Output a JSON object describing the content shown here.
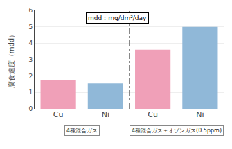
{
  "chart_data": {
    "type": "bar",
    "categories": [
      "Cu",
      "Ni",
      "Cu",
      "Ni"
    ],
    "values": [
      1.75,
      1.55,
      3.6,
      5.0
    ],
    "colors": [
      "#f0a0b8",
      "#90b8d8",
      "#f0a0b8",
      "#90b8d8"
    ],
    "ylabel": "腐食速度（mdd）",
    "ylim": [
      0,
      6
    ],
    "yticks": [
      0,
      1,
      2,
      3,
      4,
      5,
      6
    ],
    "grid": true,
    "annotations": [
      "mdd：mg/dm²/day"
    ],
    "groups": [
      {
        "label": "4種混合ガス",
        "count": 2
      },
      {
        "label": "4種混合ガス＋オゾンガス(0.5ppm)",
        "count": 2
      }
    ]
  }
}
